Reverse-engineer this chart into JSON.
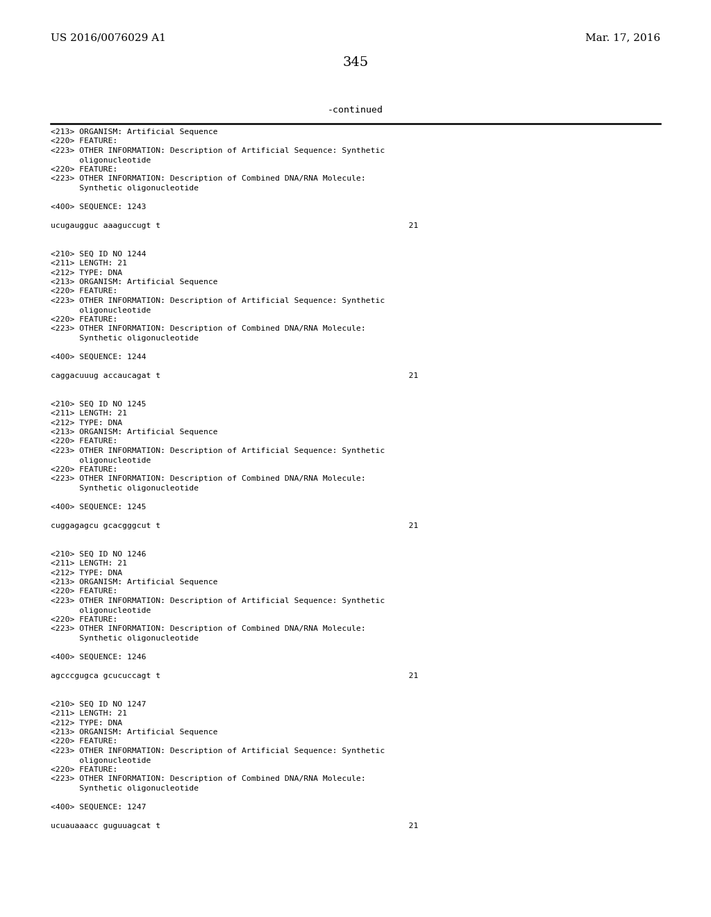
{
  "background_color": "#ffffff",
  "top_left_text": "US 2016/0076029 A1",
  "top_right_text": "Mar. 17, 2016",
  "page_number": "345",
  "continued_text": "-continued",
  "font_size_header": 11,
  "font_size_body": 8.2,
  "font_size_page_num": 14,
  "font_size_continued": 9.5,
  "content_lines": [
    "<213> ORGANISM: Artificial Sequence",
    "<220> FEATURE:",
    "<223> OTHER INFORMATION: Description of Artificial Sequence: Synthetic",
    "      oligonucleotide",
    "<220> FEATURE:",
    "<223> OTHER INFORMATION: Description of Combined DNA/RNA Molecule:",
    "      Synthetic oligonucleotide",
    "",
    "<400> SEQUENCE: 1243",
    "",
    "ucugaugguc aaaguccugt t                                                    21",
    "",
    "",
    "<210> SEQ ID NO 1244",
    "<211> LENGTH: 21",
    "<212> TYPE: DNA",
    "<213> ORGANISM: Artificial Sequence",
    "<220> FEATURE:",
    "<223> OTHER INFORMATION: Description of Artificial Sequence: Synthetic",
    "      oligonucleotide",
    "<220> FEATURE:",
    "<223> OTHER INFORMATION: Description of Combined DNA/RNA Molecule:",
    "      Synthetic oligonucleotide",
    "",
    "<400> SEQUENCE: 1244",
    "",
    "caggacuuug accaucagat t                                                    21",
    "",
    "",
    "<210> SEQ ID NO 1245",
    "<211> LENGTH: 21",
    "<212> TYPE: DNA",
    "<213> ORGANISM: Artificial Sequence",
    "<220> FEATURE:",
    "<223> OTHER INFORMATION: Description of Artificial Sequence: Synthetic",
    "      oligonucleotide",
    "<220> FEATURE:",
    "<223> OTHER INFORMATION: Description of Combined DNA/RNA Molecule:",
    "      Synthetic oligonucleotide",
    "",
    "<400> SEQUENCE: 1245",
    "",
    "cuggagagcu gcacgggcut t                                                    21",
    "",
    "",
    "<210> SEQ ID NO 1246",
    "<211> LENGTH: 21",
    "<212> TYPE: DNA",
    "<213> ORGANISM: Artificial Sequence",
    "<220> FEATURE:",
    "<223> OTHER INFORMATION: Description of Artificial Sequence: Synthetic",
    "      oligonucleotide",
    "<220> FEATURE:",
    "<223> OTHER INFORMATION: Description of Combined DNA/RNA Molecule:",
    "      Synthetic oligonucleotide",
    "",
    "<400> SEQUENCE: 1246",
    "",
    "agcccgugca gcucuccagt t                                                    21",
    "",
    "",
    "<210> SEQ ID NO 1247",
    "<211> LENGTH: 21",
    "<212> TYPE: DNA",
    "<213> ORGANISM: Artificial Sequence",
    "<220> FEATURE:",
    "<223> OTHER INFORMATION: Description of Artificial Sequence: Synthetic",
    "      oligonucleotide",
    "<220> FEATURE:",
    "<223> OTHER INFORMATION: Description of Combined DNA/RNA Molecule:",
    "      Synthetic oligonucleotide",
    "",
    "<400> SEQUENCE: 1247",
    "",
    "ucuauaaacc guguuagcat t                                                    21"
  ]
}
